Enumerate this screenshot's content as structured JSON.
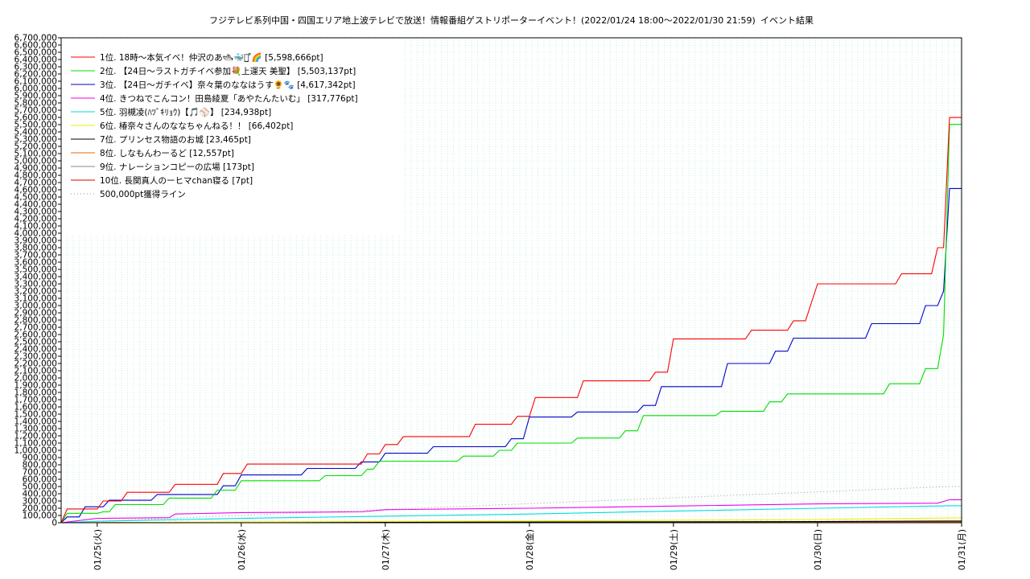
{
  "chart_data": {
    "type": "line",
    "title": "フジテレビ系列中国・四国エリア地上波テレビで放送！情報番組ゲストリポーターイベント！(2022/01/24 18:00〜2022/01/30 21:59)",
    "subtitle": "イベント結果",
    "xlabel": "",
    "ylabel": "",
    "x_range": [
      "2022/01/24 18:00",
      "2022/01/31 00:00"
    ],
    "ylim": [
      0,
      6700000
    ],
    "ytick_step": 100000,
    "ytick_labels": [
      "0",
      "100,000",
      "200,000",
      "300,000",
      "400,000",
      "500,000",
      "600,000",
      "700,000",
      "800,000",
      "900,000",
      "1,000,000",
      "1,100,000",
      "1,200,000",
      "1,300,000",
      "1,400,000",
      "1,500,000",
      "1,600,000",
      "1,700,000",
      "1,800,000",
      "1,900,000",
      "2,000,000",
      "2,100,000",
      "2,200,000",
      "2,300,000",
      "2,400,000",
      "2,500,000",
      "2,600,000",
      "2,700,000",
      "2,800,000",
      "2,900,000",
      "3,000,000",
      "3,100,000",
      "3,200,000",
      "3,300,000",
      "3,400,000",
      "3,500,000",
      "3,600,000",
      "3,700,000",
      "3,800,000",
      "3,900,000",
      "4,000,000",
      "4,100,000",
      "4,200,000",
      "4,300,000",
      "4,400,000",
      "4,500,000",
      "4,600,000",
      "4,700,000",
      "4,800,000",
      "4,900,000",
      "5,000,000",
      "5,100,000",
      "5,200,000",
      "5,300,000",
      "5,400,000",
      "5,500,000",
      "5,600,000",
      "5,700,000",
      "5,800,000",
      "5,900,000",
      "6,000,000",
      "6,100,000",
      "6,200,000",
      "6,300,000",
      "6,400,000",
      "6,500,000",
      "6,600,000",
      "6,700,000"
    ],
    "xticks": [
      {
        "label": "01/25(火)",
        "t": "2022/01/25 00:00"
      },
      {
        "label": "01/26(水)",
        "t": "2022/01/26 00:00"
      },
      {
        "label": "01/27(木)",
        "t": "2022/01/27 00:00"
      },
      {
        "label": "01/28(金)",
        "t": "2022/01/28 00:00"
      },
      {
        "label": "01/29(土)",
        "t": "2022/01/29 00:00"
      },
      {
        "label": "01/30(日)",
        "t": "2022/01/30 00:00"
      },
      {
        "label": "01/31(月)",
        "t": "2022/01/31 00:00"
      }
    ],
    "grid": true,
    "legend_position": "top-left",
    "series": [
      {
        "name": "1位. 18時〜本気イベ！仲沢のあ🛥🐳᎗̤̮ ̊🌈 [5,598,666pt]",
        "color": "#ff0000",
        "points": [
          [
            "2022/01/24 18:00",
            0
          ],
          [
            "2022/01/24 19:00",
            190000
          ],
          [
            "2022/01/25 00:00",
            190000
          ],
          [
            "2022/01/25 01:00",
            300000
          ],
          [
            "2022/01/25 04:00",
            300000
          ],
          [
            "2022/01/25 05:00",
            420000
          ],
          [
            "2022/01/25 12:00",
            420000
          ],
          [
            "2022/01/25 13:00",
            530000
          ],
          [
            "2022/01/25 20:00",
            530000
          ],
          [
            "2022/01/25 21:00",
            680000
          ],
          [
            "2022/01/26 00:00",
            680000
          ],
          [
            "2022/01/26 01:00",
            810000
          ],
          [
            "2022/01/26 20:00",
            810000
          ],
          [
            "2022/01/26 21:00",
            950000
          ],
          [
            "2022/01/26 23:00",
            950000
          ],
          [
            "2022/01/27 00:00",
            1080000
          ],
          [
            "2022/01/27 02:00",
            1080000
          ],
          [
            "2022/01/27 03:00",
            1190000
          ],
          [
            "2022/01/27 14:00",
            1190000
          ],
          [
            "2022/01/27 15:00",
            1360000
          ],
          [
            "2022/01/27 21:00",
            1360000
          ],
          [
            "2022/01/27 22:00",
            1470000
          ],
          [
            "2022/01/28 00:00",
            1470000
          ],
          [
            "2022/01/28 01:00",
            1730000
          ],
          [
            "2022/01/28 08:00",
            1730000
          ],
          [
            "2022/01/28 09:00",
            1960000
          ],
          [
            "2022/01/28 20:00",
            1960000
          ],
          [
            "2022/01/28 21:00",
            2080000
          ],
          [
            "2022/01/28 23:00",
            2080000
          ],
          [
            "2022/01/29 00:00",
            2540000
          ],
          [
            "2022/01/29 12:00",
            2540000
          ],
          [
            "2022/01/29 13:00",
            2660000
          ],
          [
            "2022/01/29 19:00",
            2660000
          ],
          [
            "2022/01/29 20:00",
            2790000
          ],
          [
            "2022/01/29 22:00",
            2790000
          ],
          [
            "2022/01/30 00:00",
            3300000
          ],
          [
            "2022/01/30 13:00",
            3300000
          ],
          [
            "2022/01/30 14:00",
            3440000
          ],
          [
            "2022/01/30 19:00",
            3440000
          ],
          [
            "2022/01/30 20:00",
            3800000
          ],
          [
            "2022/01/30 21:00",
            3800000
          ],
          [
            "2022/01/30 21:59",
            5598666
          ],
          [
            "2022/01/31 00:00",
            5598666
          ]
        ]
      },
      {
        "name": "2位. 【24日〜ラストガチイベ参加💐上運天 美聖】 [5,503,137pt]",
        "color": "#00dd00",
        "points": [
          [
            "2022/01/24 18:00",
            0
          ],
          [
            "2022/01/24 19:00",
            130000
          ],
          [
            "2022/01/25 00:00",
            130000
          ],
          [
            "2022/01/25 01:00",
            150000
          ],
          [
            "2022/01/25 02:00",
            150000
          ],
          [
            "2022/01/25 03:00",
            250000
          ],
          [
            "2022/01/25 11:00",
            250000
          ],
          [
            "2022/01/25 12:00",
            340000
          ],
          [
            "2022/01/25 19:00",
            340000
          ],
          [
            "2022/01/25 20:00",
            450000
          ],
          [
            "2022/01/25 23:00",
            450000
          ],
          [
            "2022/01/26 00:00",
            580000
          ],
          [
            "2022/01/26 13:00",
            580000
          ],
          [
            "2022/01/26 14:00",
            650000
          ],
          [
            "2022/01/26 20:00",
            650000
          ],
          [
            "2022/01/26 21:00",
            740000
          ],
          [
            "2022/01/26 22:00",
            740000
          ],
          [
            "2022/01/26 23:00",
            850000
          ],
          [
            "2022/01/27 12:00",
            850000
          ],
          [
            "2022/01/27 13:00",
            920000
          ],
          [
            "2022/01/27 18:00",
            920000
          ],
          [
            "2022/01/27 19:00",
            1000000
          ],
          [
            "2022/01/27 21:00",
            1000000
          ],
          [
            "2022/01/27 22:00",
            1100000
          ],
          [
            "2022/01/28 07:00",
            1100000
          ],
          [
            "2022/01/28 08:00",
            1170000
          ],
          [
            "2022/01/28 15:00",
            1170000
          ],
          [
            "2022/01/28 16:00",
            1270000
          ],
          [
            "2022/01/28 18:00",
            1270000
          ],
          [
            "2022/01/28 19:00",
            1480000
          ],
          [
            "2022/01/29 07:00",
            1480000
          ],
          [
            "2022/01/29 08:00",
            1540000
          ],
          [
            "2022/01/29 15:00",
            1540000
          ],
          [
            "2022/01/29 16:00",
            1670000
          ],
          [
            "2022/01/29 18:00",
            1670000
          ],
          [
            "2022/01/29 19:00",
            1780000
          ],
          [
            "2022/01/30 11:00",
            1780000
          ],
          [
            "2022/01/30 12:00",
            1920000
          ],
          [
            "2022/01/30 17:00",
            1920000
          ],
          [
            "2022/01/30 18:00",
            2130000
          ],
          [
            "2022/01/30 20:00",
            2130000
          ],
          [
            "2022/01/30 21:00",
            2600000
          ],
          [
            "2022/01/30 21:59",
            5503137
          ],
          [
            "2022/01/31 00:00",
            5503137
          ]
        ]
      },
      {
        "name": "3位. 【24日〜ガチイベ】奈々葉のななはうす🌻🐾 [4,617,342pt]",
        "color": "#0000cc",
        "points": [
          [
            "2022/01/24 18:00",
            0
          ],
          [
            "2022/01/24 19:00",
            80000
          ],
          [
            "2022/01/24 21:00",
            80000
          ],
          [
            "2022/01/24 22:00",
            220000
          ],
          [
            "2022/01/25 01:00",
            220000
          ],
          [
            "2022/01/25 02:00",
            310000
          ],
          [
            "2022/01/25 09:00",
            310000
          ],
          [
            "2022/01/25 10:00",
            390000
          ],
          [
            "2022/01/25 20:00",
            390000
          ],
          [
            "2022/01/25 21:00",
            510000
          ],
          [
            "2022/01/25 23:00",
            510000
          ],
          [
            "2022/01/26 00:00",
            660000
          ],
          [
            "2022/01/26 10:00",
            660000
          ],
          [
            "2022/01/26 11:00",
            750000
          ],
          [
            "2022/01/26 19:00",
            750000
          ],
          [
            "2022/01/26 20:00",
            840000
          ],
          [
            "2022/01/26 23:00",
            840000
          ],
          [
            "2022/01/27 00:00",
            960000
          ],
          [
            "2022/01/27 07:00",
            960000
          ],
          [
            "2022/01/27 08:00",
            1050000
          ],
          [
            "2022/01/27 20:00",
            1050000
          ],
          [
            "2022/01/27 21:00",
            1160000
          ],
          [
            "2022/01/27 23:00",
            1160000
          ],
          [
            "2022/01/28 00:00",
            1460000
          ],
          [
            "2022/01/28 07:00",
            1460000
          ],
          [
            "2022/01/28 08:00",
            1530000
          ],
          [
            "2022/01/28 18:00",
            1530000
          ],
          [
            "2022/01/28 19:00",
            1620000
          ],
          [
            "2022/01/28 21:00",
            1620000
          ],
          [
            "2022/01/28 22:00",
            1880000
          ],
          [
            "2022/01/29 08:00",
            1880000
          ],
          [
            "2022/01/29 09:00",
            2200000
          ],
          [
            "2022/01/29 16:00",
            2200000
          ],
          [
            "2022/01/29 17:00",
            2370000
          ],
          [
            "2022/01/29 19:00",
            2370000
          ],
          [
            "2022/01/29 20:00",
            2550000
          ],
          [
            "2022/01/30 08:00",
            2550000
          ],
          [
            "2022/01/30 09:00",
            2750000
          ],
          [
            "2022/01/30 17:00",
            2750000
          ],
          [
            "2022/01/30 18:00",
            3000000
          ],
          [
            "2022/01/30 20:00",
            3000000
          ],
          [
            "2022/01/30 21:00",
            3200000
          ],
          [
            "2022/01/30 21:59",
            4617342
          ],
          [
            "2022/01/31 00:00",
            4617342
          ]
        ]
      },
      {
        "name": "4位. きつねでこんコン！田島綾夏「あやたんたいむ」 [317,776pt]",
        "color": "#ee00ee",
        "points": [
          [
            "2022/01/24 18:00",
            0
          ],
          [
            "2022/01/25 00:00",
            60000
          ],
          [
            "2022/01/25 12:00",
            70000
          ],
          [
            "2022/01/25 13:00",
            120000
          ],
          [
            "2022/01/26 00:00",
            140000
          ],
          [
            "2022/01/26 20:00",
            150000
          ],
          [
            "2022/01/27 00:00",
            180000
          ],
          [
            "2022/01/28 00:00",
            200000
          ],
          [
            "2022/01/29 00:00",
            230000
          ],
          [
            "2022/01/30 00:00",
            260000
          ],
          [
            "2022/01/30 20:00",
            270000
          ],
          [
            "2022/01/30 21:59",
            317776
          ],
          [
            "2022/01/31 00:00",
            317776
          ]
        ]
      },
      {
        "name": "5位. 羽槻凌(ﾊﾂﾞｷﾘｮｳ)【🎵⚾】 [234,938pt]",
        "color": "#00dddd",
        "points": [
          [
            "2022/01/24 18:00",
            0
          ],
          [
            "2022/01/25 00:00",
            20000
          ],
          [
            "2022/01/26 00:00",
            60000
          ],
          [
            "2022/01/27 00:00",
            90000
          ],
          [
            "2022/01/28 00:00",
            120000
          ],
          [
            "2022/01/29 00:00",
            160000
          ],
          [
            "2022/01/30 00:00",
            200000
          ],
          [
            "2022/01/30 21:59",
            234938
          ],
          [
            "2022/01/31 00:00",
            234938
          ]
        ]
      },
      {
        "name": "6位. 椿奈々さんのななちゃんねる！！ [66,402pt]",
        "color": "#eeee00",
        "points": [
          [
            "2022/01/24 18:00",
            0
          ],
          [
            "2022/01/26 00:00",
            10000
          ],
          [
            "2022/01/28 00:00",
            25000
          ],
          [
            "2022/01/30 00:00",
            45000
          ],
          [
            "2022/01/30 21:59",
            66402
          ],
          [
            "2022/01/31 00:00",
            66402
          ]
        ]
      },
      {
        "name": "7位. プリンセス物語のお城 [23,465pt]",
        "color": "#000000",
        "points": [
          [
            "2022/01/24 18:00",
            0
          ],
          [
            "2022/01/30 00:00",
            15000
          ],
          [
            "2022/01/30 21:59",
            23465
          ],
          [
            "2022/01/31 00:00",
            23465
          ]
        ]
      },
      {
        "name": "8位. しなもんわーるど [12,557pt]",
        "color": "#ee6600",
        "points": [
          [
            "2022/01/24 18:00",
            0
          ],
          [
            "2022/01/29 00:00",
            8000
          ],
          [
            "2022/01/30 21:59",
            12557
          ],
          [
            "2022/01/31 00:00",
            12557
          ]
        ]
      },
      {
        "name": "9位. ナレーションコピーの広場 [173pt]",
        "color": "#888888",
        "points": [
          [
            "2022/01/24 18:00",
            0
          ],
          [
            "2022/01/30 21:59",
            173
          ],
          [
            "2022/01/31 00:00",
            173
          ]
        ]
      },
      {
        "name": "10位. 長関真人のーヒマchan寝る [7pt]",
        "color": "#dd0000",
        "points": [
          [
            "2022/01/24 18:00",
            0
          ],
          [
            "2022/01/30 21:59",
            7
          ],
          [
            "2022/01/31 00:00",
            7
          ]
        ]
      }
    ],
    "reference_line": {
      "name": "500,000pt獲得ライン",
      "color": "#999999",
      "points": [
        [
          "2022/01/24 18:00",
          0
        ],
        [
          "2022/01/30 21:59",
          500000
        ],
        [
          "2022/01/31 00:00",
          500000
        ]
      ]
    }
  }
}
